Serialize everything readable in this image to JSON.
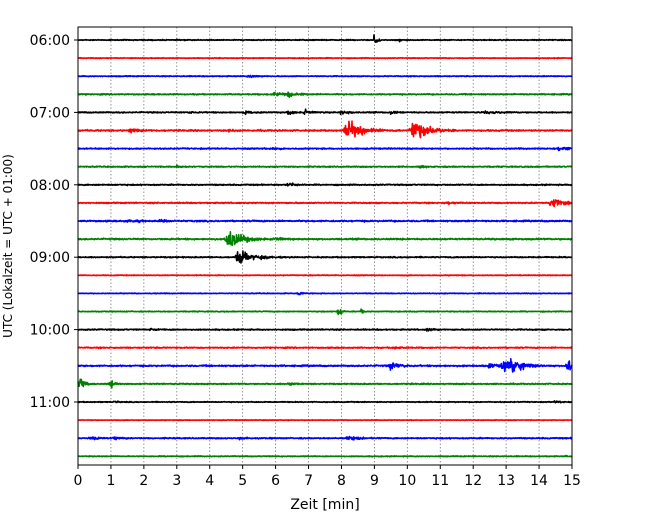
{
  "chart_data": {
    "type": "line",
    "xlabel": "Zeit  [min]",
    "ylabel": "UTC (Lokalzeit = UTC + 01:00)",
    "xlim": [
      0,
      15
    ],
    "xticks": [
      0,
      1,
      2,
      3,
      4,
      5,
      6,
      7,
      8,
      9,
      10,
      11,
      12,
      13,
      14,
      15
    ],
    "grid": true,
    "trace_colors": [
      "#000000",
      "#ff0000",
      "#0000ff",
      "#008000"
    ],
    "traces": [
      {
        "time": "06:00",
        "label": "06:00",
        "noise": 0.6,
        "events": [
          {
            "t": 9.0,
            "amp": 12,
            "dur": 0.08
          },
          {
            "t": 9.75,
            "amp": 5,
            "dur": 0.05
          }
        ]
      },
      {
        "time": "06:15",
        "label": "",
        "noise": 0.5,
        "events": []
      },
      {
        "time": "06:30",
        "label": "",
        "noise": 0.6,
        "events": [
          {
            "t": 5.2,
            "amp": 2,
            "dur": 0.3
          }
        ]
      },
      {
        "time": "06:45",
        "label": "",
        "noise": 0.8,
        "events": [
          {
            "t": 6.0,
            "amp": 3,
            "dur": 0.4
          },
          {
            "t": 6.4,
            "amp": 3,
            "dur": 0.3
          }
        ]
      },
      {
        "time": "07:00",
        "label": "07:00",
        "noise": 0.8,
        "events": [
          {
            "t": 3.4,
            "amp": 2.5,
            "dur": 0.1
          },
          {
            "t": 5.1,
            "amp": 3,
            "dur": 0.2
          },
          {
            "t": 6.4,
            "amp": 3.5,
            "dur": 0.2
          },
          {
            "t": 6.9,
            "amp": 4,
            "dur": 0.2
          },
          {
            "t": 8.0,
            "amp": 4,
            "dur": 0.25
          },
          {
            "t": 9.5,
            "amp": 2.5,
            "dur": 0.2
          },
          {
            "t": 12.4,
            "amp": 3,
            "dur": 0.3
          }
        ]
      },
      {
        "time": "07:15",
        "label": "",
        "noise": 1.0,
        "events": [
          {
            "t": 1.6,
            "amp": 3,
            "dur": 0.3
          },
          {
            "t": 4.6,
            "amp": 2,
            "dur": 0.2
          },
          {
            "t": 8.2,
            "amp": 14,
            "dur": 0.45
          },
          {
            "t": 10.2,
            "amp": 14,
            "dur": 0.5
          }
        ]
      },
      {
        "time": "07:30",
        "label": "",
        "noise": 0.8,
        "events": [
          {
            "t": 5.9,
            "amp": 2,
            "dur": 0.3
          },
          {
            "t": 14.6,
            "amp": 4,
            "dur": 0.3
          }
        ]
      },
      {
        "time": "07:45",
        "label": "",
        "noise": 0.8,
        "events": [
          {
            "t": 3.0,
            "amp": 2,
            "dur": 0.3
          },
          {
            "t": 10.4,
            "amp": 2,
            "dur": 0.2
          }
        ]
      },
      {
        "time": "08:00",
        "label": "08:00",
        "noise": 0.8,
        "events": [
          {
            "t": 6.4,
            "amp": 3,
            "dur": 0.3
          }
        ]
      },
      {
        "time": "08:15",
        "label": "",
        "noise": 0.8,
        "events": [
          {
            "t": 11.2,
            "amp": 2,
            "dur": 0.3
          },
          {
            "t": 14.4,
            "amp": 8,
            "dur": 0.3
          }
        ]
      },
      {
        "time": "08:30",
        "label": "",
        "noise": 1.0,
        "events": [
          {
            "t": 1.5,
            "amp": 2.5,
            "dur": 0.4
          },
          {
            "t": 2.5,
            "amp": 2,
            "dur": 0.3
          }
        ]
      },
      {
        "time": "08:45",
        "label": "",
        "noise": 1.0,
        "events": [
          {
            "t": 4.6,
            "amp": 12,
            "dur": 0.45
          },
          {
            "t": 6.0,
            "amp": 3,
            "dur": 0.3
          }
        ]
      },
      {
        "time": "09:00",
        "label": "09:00",
        "noise": 0.8,
        "events": [
          {
            "t": 4.9,
            "amp": 10,
            "dur": 0.4
          },
          {
            "t": 5.6,
            "amp": 3,
            "dur": 0.3
          }
        ]
      },
      {
        "time": "09:15",
        "label": "",
        "noise": 0.5,
        "events": []
      },
      {
        "time": "09:30",
        "label": "",
        "noise": 0.5,
        "events": [
          {
            "t": 6.7,
            "amp": 2,
            "dur": 0.2
          }
        ]
      },
      {
        "time": "09:45",
        "label": "",
        "noise": 0.6,
        "events": [
          {
            "t": 7.9,
            "amp": 12,
            "dur": 0.08
          },
          {
            "t": 8.6,
            "amp": 5,
            "dur": 0.06
          }
        ]
      },
      {
        "time": "10:00",
        "label": "10:00",
        "noise": 0.8,
        "events": [
          {
            "t": 2.2,
            "amp": 2.5,
            "dur": 0.2
          },
          {
            "t": 10.6,
            "amp": 2.5,
            "dur": 0.2
          }
        ]
      },
      {
        "time": "10:15",
        "label": "",
        "noise": 0.8,
        "events": [
          {
            "t": 9.6,
            "amp": 2,
            "dur": 0.2
          }
        ]
      },
      {
        "time": "10:30",
        "label": "",
        "noise": 1.0,
        "events": [
          {
            "t": 9.5,
            "amp": 6,
            "dur": 0.3
          },
          {
            "t": 12.5,
            "amp": 4,
            "dur": 0.3
          },
          {
            "t": 13.0,
            "amp": 12,
            "dur": 0.5
          },
          {
            "t": 14.9,
            "amp": 9,
            "dur": 0.3
          }
        ]
      },
      {
        "time": "10:45",
        "label": "",
        "noise": 0.8,
        "events": [
          {
            "t": 0.05,
            "amp": 7,
            "dur": 0.2
          },
          {
            "t": 1.0,
            "amp": 5,
            "dur": 0.2
          },
          {
            "t": 6.4,
            "amp": 2.5,
            "dur": 0.2
          }
        ]
      },
      {
        "time": "11:00",
        "label": "11:00",
        "noise": 0.6,
        "events": [
          {
            "t": 1.1,
            "amp": 3,
            "dur": 0.1
          },
          {
            "t": 14.5,
            "amp": 2,
            "dur": 0.2
          }
        ]
      },
      {
        "time": "11:15",
        "label": "",
        "noise": 0.4,
        "events": []
      },
      {
        "time": "11:30",
        "label": "",
        "noise": 0.8,
        "events": [
          {
            "t": 0.4,
            "amp": 3,
            "dur": 0.3
          },
          {
            "t": 1.1,
            "amp": 3,
            "dur": 0.2
          },
          {
            "t": 8.2,
            "amp": 3,
            "dur": 0.4
          },
          {
            "t": 4.9,
            "amp": 2,
            "dur": 0.2
          }
        ]
      },
      {
        "time": "11:45",
        "label": "",
        "noise": 0.6,
        "events": [
          {
            "t": 14.8,
            "amp": 1,
            "dur": 0.1
          }
        ]
      }
    ]
  }
}
